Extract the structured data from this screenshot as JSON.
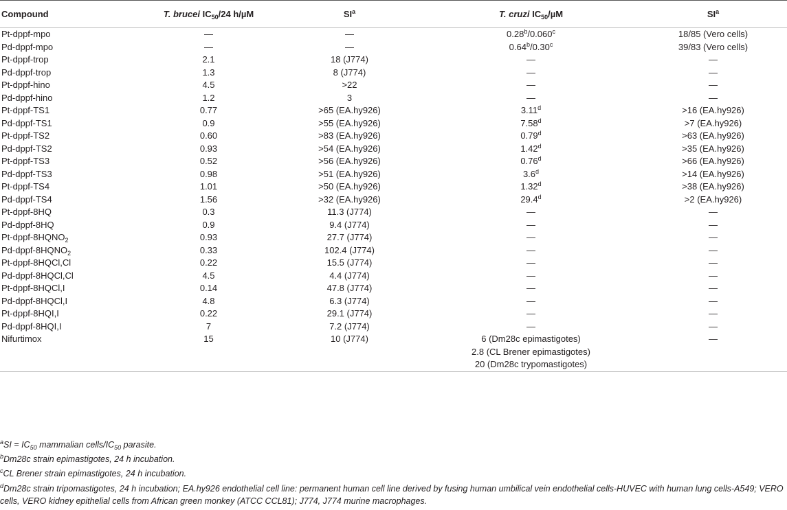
{
  "headers": {
    "compound": "Compound",
    "tb_a": "T. brucei",
    "tb_b": " IC",
    "tb_sub": "50",
    "tb_c": "/24 h/µM",
    "si": "SI",
    "si_sup": "a",
    "tc_a": "T. cruzi",
    "tc_b": " IC",
    "tc_sub": "50",
    "tc_c": "/µM",
    "si2": "SI",
    "si2_sup": "a"
  },
  "rows": [
    {
      "compound": "Pt-dppf-mpo",
      "tb": "—",
      "si": "—",
      "tc": "0.28",
      "tc_sup1": "b",
      "tc_mid": "/0.060",
      "tc_sup2": "c",
      "si2": "18/85 (Vero cells)"
    },
    {
      "compound": "Pd-dppf-mpo",
      "tb": "—",
      "si": "—",
      "tc": "0.64",
      "tc_sup1": "b",
      "tc_mid": "/0.30",
      "tc_sup2": "c",
      "si2": "39/83 (Vero cells)"
    },
    {
      "compound": "Pt-dppf-trop",
      "tb": "2.1",
      "si": "18 (J774)",
      "tc": "—",
      "si2": "—"
    },
    {
      "compound": "Pd-dppf-trop",
      "tb": "1.3",
      "si": "8 (J774)",
      "tc": "—",
      "si2": "—"
    },
    {
      "compound": "Pt-dppf-hino",
      "tb": "4.5",
      "si": ">22",
      "tc": "—",
      "si2": "—"
    },
    {
      "compound": "Pd-dppf-hino",
      "tb": "1.2",
      "si": "3",
      "tc": "—",
      "si2": "—"
    },
    {
      "compound": "Pt-dppf-TS1",
      "tb": "0.77",
      "si": ">65 (EA.hy926)",
      "tc": "3.11",
      "tc_sup1": "d",
      "si2": ">16 (EA.hy926)"
    },
    {
      "compound": "Pd-dppf-TS1",
      "tb": "0.9",
      "si": ">55 (EA.hy926)",
      "tc": "7.58",
      "tc_sup1": "d",
      "si2": ">7 (EA.hy926)"
    },
    {
      "compound": "Pt-dppf-TS2",
      "tb": "0.60",
      "si": ">83 (EA.hy926)",
      "tc": "0.79",
      "tc_sup1": "d",
      "si2": ">63 (EA.hy926)"
    },
    {
      "compound": "Pd-dppf-TS2",
      "tb": "0.93",
      "si": ">54 (EA.hy926)",
      "tc": "1.42",
      "tc_sup1": "d",
      "si2": ">35 (EA.hy926)"
    },
    {
      "compound": "Pt-dppf-TS3",
      "tb": "0.52",
      "si": ">56 (EA.hy926)",
      "tc": "0.76",
      "tc_sup1": "d",
      "si2": ">66 (EA.hy926)"
    },
    {
      "compound": "Pd-dppf-TS3",
      "tb": "0.98",
      "si": ">51 (EA.hy926)",
      "tc": "3.6",
      "tc_sup1": "d",
      "si2": ">14 (EA.hy926)"
    },
    {
      "compound": "Pt-dppf-TS4",
      "tb": "1.01",
      "si": ">50 (EA.hy926)",
      "tc": "1.32",
      "tc_sup1": "d",
      "si2": ">38 (EA.hy926)"
    },
    {
      "compound": "Pd-dppf-TS4",
      "tb": "1.56",
      "si": ">32 (EA.hy926)",
      "tc": "29.4",
      "tc_sup1": "d",
      "si2": ">2 (EA.hy926)"
    },
    {
      "compound": "Pt-dppf-8HQ",
      "tb": "0.3",
      "si": "11.3 (J774)",
      "tc": "—",
      "si2": "—"
    },
    {
      "compound": "Pd-dppf-8HQ",
      "tb": "0.9",
      "si": "9.4 (J774)",
      "tc": "—",
      "si2": "—"
    },
    {
      "compound": "Pt-dppf-8HQNO",
      "compound_sub": "2",
      "tb": "0.93",
      "si": "27.7 (J774)",
      "tc": "—",
      "si2": "—"
    },
    {
      "compound": "Pd-dppf-8HQNO",
      "compound_sub": "2",
      "tb": "0.33",
      "si": "102.4 (J774)",
      "tc": "—",
      "si2": "—"
    },
    {
      "compound": "Pt-dppf-8HQCl,Cl",
      "tb": "0.22",
      "si": "15.5 (J774)",
      "tc": "—",
      "si2": "—"
    },
    {
      "compound": "Pd-dppf-8HQCl,Cl",
      "tb": "4.5",
      "si": "4.4 (J774)",
      "tc": "—",
      "si2": "—"
    },
    {
      "compound": "Pt-dppf-8HQCl,I",
      "tb": "0.14",
      "si": "47.8 (J774)",
      "tc": "—",
      "si2": "—"
    },
    {
      "compound": "Pd-dppf-8HQCl,I",
      "tb": "4.8",
      "si": "6.3 (J774)",
      "tc": "—",
      "si2": "—"
    },
    {
      "compound": "Pt-dppf-8HQI,I",
      "tb": "0.22",
      "si": "29.1 (J774)",
      "tc": "—",
      "si2": "—"
    },
    {
      "compound": "Pd-dppf-8HQI,I",
      "tb": "7",
      "si": "7.2 (J774)",
      "tc": "—",
      "si2": "—"
    },
    {
      "compound": "Nifurtimox",
      "tb": "15",
      "si": "10 (J774)",
      "tc": "6 (Dm28c epimastigotes)",
      "si2": "—"
    },
    {
      "compound": "",
      "tb": "",
      "si": "",
      "tc": "2.8 (CL Brener epimastigotes)",
      "si2": ""
    },
    {
      "compound": "",
      "tb": "",
      "si": "",
      "tc": "20 (Dm28c trypomastigotes)",
      "si2": ""
    }
  ],
  "notes": {
    "a_sup": "a",
    "a_1": "SI = IC",
    "a_sub1": "50",
    "a_2": " mammalian cells/IC",
    "a_sub2": "50",
    "a_3": " parasite.",
    "b_sup": "b",
    "b_text": "Dm28c strain epimastigotes, 24 h incubation.",
    "c_sup": "c",
    "c_text": "CL Brener strain epimastigotes, 24 h incubation.",
    "d_sup": "d",
    "d_text": "Dm28c strain tripomastigotes, 24 h incubation; EA.hy926 endothelial cell line: permanent human cell line derived by fusing human umbilical vein endothelial cells-HUVEC with human lung cells-A549; VERO cells, VERO kidney epithelial cells from African green monkey (ATCC CCL81); J774, J774 murine macrophages."
  }
}
